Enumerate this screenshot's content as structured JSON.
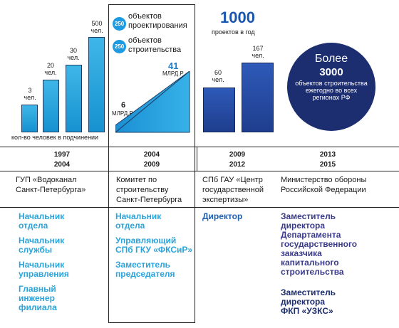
{
  "col1": {
    "bars": [
      {
        "value": "3",
        "unit": "чел."
      },
      {
        "value": "20",
        "unit": "чел."
      },
      {
        "value": "30",
        "unit": "чел."
      },
      {
        "value": "500",
        "unit": "чел."
      }
    ],
    "caption": "кол-во человек в подчинении"
  },
  "col2": {
    "badges": [
      {
        "number": "250",
        "text": "объектов проектирования"
      },
      {
        "number": "250",
        "text": "объектов строительства"
      }
    ],
    "budget_low": {
      "value": "6",
      "unit": "МЛРД.Р"
    },
    "budget_high": {
      "value": "41",
      "unit": "МЛРД.Р"
    }
  },
  "col3": {
    "big_number": "1000",
    "big_caption": "проектов в год",
    "bars": [
      {
        "value": "60",
        "unit": "чел."
      },
      {
        "value": "167",
        "unit": "чел."
      }
    ]
  },
  "col4": {
    "circle_line1": "Более",
    "circle_line2": "3000",
    "circle_line3": "объектов строительства ежегодно во всех регионах РФ"
  },
  "timeline": [
    {
      "start": "1997",
      "end": "2004"
    },
    {
      "start": "2004",
      "end": "2009"
    },
    {
      "start": "2009",
      "end": "2012"
    },
    {
      "start": "2013",
      "end": "2015"
    }
  ],
  "orgs": [
    {
      "line1": "ГУП «Водоканал",
      "line2": "Санкт-Петербурга»"
    },
    {
      "line1": "Комитет по",
      "line2": "строительству",
      "line3": "Санкт-Петербурга"
    },
    {
      "line1": "СПб ГАУ «Центр",
      "line2": "государственной",
      "line3": "экспертизы»"
    },
    {
      "line1": "Министерство обороны",
      "line2": "Российской Федерации"
    }
  ],
  "roles_col1": [
    {
      "l1": "Начальник",
      "l2": "отдела"
    },
    {
      "l1": "Начальник",
      "l2": "службы"
    },
    {
      "l1": "Начальник",
      "l2": "управления"
    },
    {
      "l1": "Главный",
      "l2": "инженер",
      "l3": "филиала"
    }
  ],
  "roles_col2": [
    {
      "l1": "Начальник",
      "l2": "отдела"
    },
    {
      "l1": "Управляющий",
      "l2": "СПб ГКУ «ФКСиР»"
    },
    {
      "l1": "Заместитель",
      "l2": "председателя"
    }
  ],
  "roles_col3": [
    {
      "l1": "Директор"
    }
  ],
  "roles_col4": [
    {
      "l1": "Заместитель",
      "l2": "директора",
      "l3": "Департамента",
      "l4": "государственного",
      "l5": "заказчика",
      "l6": "капитального",
      "l7": "строительства"
    },
    {
      "l1": "Заместитель",
      "l2": "директора",
      "l3": "ФКП «УЗКС»"
    }
  ],
  "colors": {
    "light_blue": "#29a4dc",
    "blue": "#1f5fb0",
    "navy": "#1c2d70"
  }
}
